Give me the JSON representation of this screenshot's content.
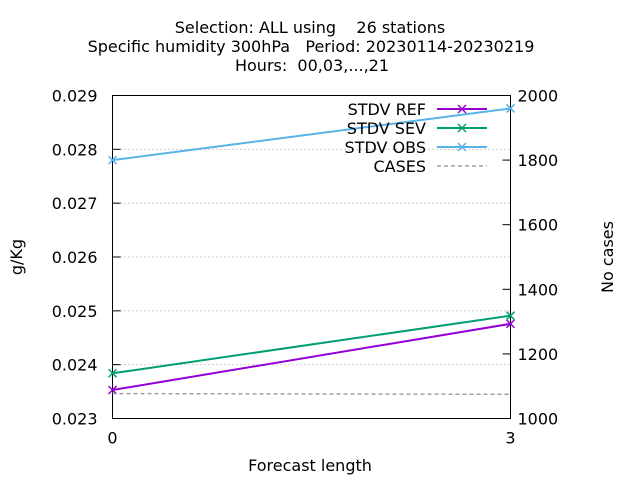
{
  "chart_data": {
    "type": "line",
    "title_lines": [
      "Selection: ALL using    26 stations",
      "Specific humidity 300hPa   Period: 20230114-20230219",
      "Hours:  00,03,...,21"
    ],
    "xlabel": "Forecast length",
    "ylabel": "g/Kg",
    "y2label": "No cases",
    "x": [
      0,
      3
    ],
    "xlim": [
      0,
      3
    ],
    "ylim": [
      0.023,
      0.029
    ],
    "y2lim": [
      1000,
      2000
    ],
    "xticks": [
      "0",
      "3"
    ],
    "yticks": [
      "0.023",
      "0.024",
      "0.025",
      "0.026",
      "0.027",
      "0.028",
      "0.029"
    ],
    "y2ticks": [
      "1000",
      "1200",
      "1400",
      "1600",
      "1800",
      "2000"
    ],
    "grid": true,
    "legend_position": "top-right",
    "series": [
      {
        "name": "STDV REF",
        "values": [
          0.02353,
          0.02476
        ],
        "color": "#9400d3",
        "axis": "y",
        "marker": "x"
      },
      {
        "name": "STDV SEV",
        "values": [
          0.02384,
          0.02491
        ],
        "color": "#009e73",
        "axis": "y",
        "marker": "x"
      },
      {
        "name": "STDV OBS",
        "values": [
          0.0278,
          0.02876
        ],
        "color": "#56b4e9",
        "axis": "y",
        "marker": "x"
      },
      {
        "name": "CASES",
        "values": [
          1077,
          1075
        ],
        "color": "#a0a0a0",
        "axis": "y2",
        "dashed": true
      }
    ]
  }
}
